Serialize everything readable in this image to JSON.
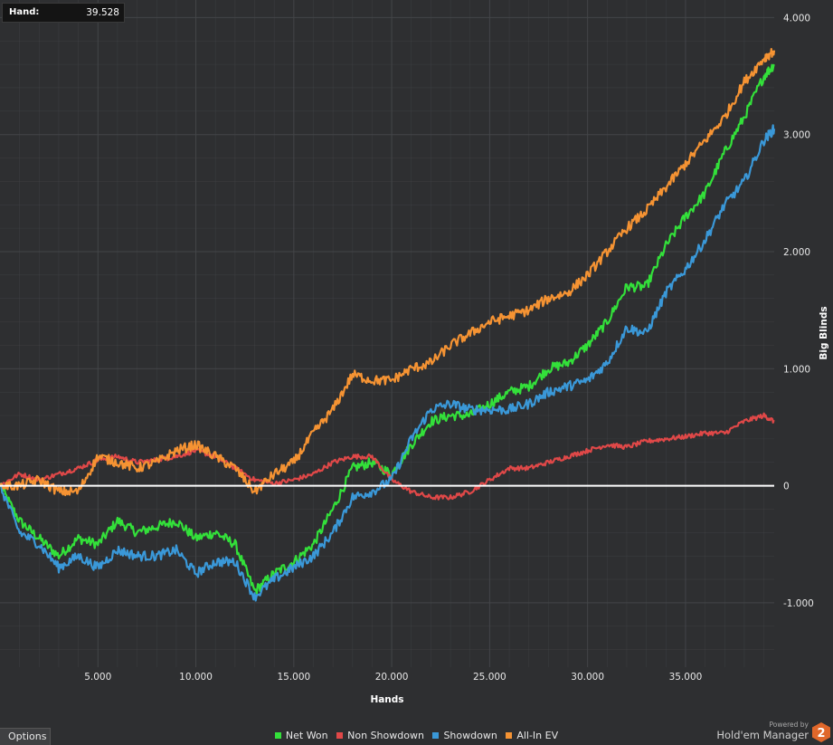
{
  "hand_readout": {
    "label": "Hand:",
    "value": "39.528"
  },
  "options_label": "Options",
  "branding": {
    "powered_by": "Powered by",
    "name": "Hold'em Manager",
    "badge": "2"
  },
  "colors": {
    "background": "#2e2f31",
    "grid": "#45474a",
    "zero_line": "#ffffff",
    "net_won": "#33e03a",
    "non_showdown": "#e04848",
    "showdown": "#3a98d8",
    "all_in_ev": "#f59333"
  },
  "chart_data": {
    "type": "line",
    "title": "",
    "xlabel": "Hands",
    "ylabel": "Big Blinds",
    "xlim": [
      0,
      39528
    ],
    "ylim": [
      -1550,
      4150
    ],
    "x_ticks": [
      5000,
      10000,
      15000,
      20000,
      25000,
      30000,
      35000
    ],
    "x_tick_labels": [
      "5.000",
      "10.000",
      "15.000",
      "20.000",
      "25.000",
      "30.000",
      "35.000"
    ],
    "y_ticks": [
      -1000,
      0,
      1000,
      2000,
      3000,
      4000
    ],
    "y_tick_labels": [
      "-1.000",
      "0",
      "1.000",
      "2.000",
      "3.000",
      "4.000"
    ],
    "grid": true,
    "legend_position": "bottom",
    "zero_line": true,
    "series": [
      {
        "name": "Net Won",
        "color": "#33e03a",
        "x": [
          0,
          1000,
          2000,
          3000,
          4000,
          5000,
          6000,
          7000,
          8000,
          9000,
          10000,
          11000,
          12000,
          13000,
          14000,
          15000,
          16000,
          17000,
          18000,
          19000,
          20000,
          21000,
          22000,
          23000,
          24000,
          25000,
          26000,
          27000,
          28000,
          29000,
          30000,
          31000,
          32000,
          33000,
          34000,
          35000,
          36000,
          37000,
          38000,
          39000,
          39528
        ],
        "values": [
          0,
          -300,
          -450,
          -600,
          -450,
          -500,
          -300,
          -400,
          -350,
          -300,
          -450,
          -400,
          -500,
          -900,
          -750,
          -650,
          -500,
          -200,
          150,
          200,
          100,
          350,
          550,
          600,
          600,
          700,
          800,
          850,
          1000,
          1050,
          1200,
          1400,
          1700,
          1700,
          2050,
          2300,
          2500,
          2850,
          3150,
          3500,
          3600
        ]
      },
      {
        "name": "Non Showdown",
        "color": "#e04848",
        "x": [
          0,
          1000,
          2000,
          3000,
          4000,
          5000,
          6000,
          7000,
          8000,
          9000,
          10000,
          11000,
          12000,
          13000,
          14000,
          15000,
          16000,
          17000,
          18000,
          19000,
          20000,
          21000,
          22000,
          23000,
          24000,
          25000,
          26000,
          27000,
          28000,
          29000,
          30000,
          31000,
          32000,
          33000,
          34000,
          35000,
          36000,
          37000,
          38000,
          39000,
          39528
        ],
        "values": [
          0,
          100,
          50,
          100,
          150,
          220,
          250,
          200,
          220,
          250,
          300,
          250,
          150,
          50,
          20,
          50,
          100,
          200,
          250,
          250,
          50,
          -50,
          -100,
          -100,
          -50,
          50,
          150,
          150,
          200,
          250,
          300,
          350,
          330,
          380,
          400,
          420,
          450,
          450,
          550,
          600,
          550
        ]
      },
      {
        "name": "Showdown",
        "color": "#3a98d8",
        "x": [
          0,
          1000,
          2000,
          3000,
          4000,
          5000,
          6000,
          7000,
          8000,
          9000,
          10000,
          11000,
          12000,
          13000,
          14000,
          15000,
          16000,
          17000,
          18000,
          19000,
          20000,
          21000,
          22000,
          23000,
          24000,
          25000,
          26000,
          27000,
          28000,
          29000,
          30000,
          31000,
          32000,
          33000,
          34000,
          35000,
          36000,
          37000,
          38000,
          39000,
          39528
        ],
        "values": [
          0,
          -400,
          -500,
          -700,
          -600,
          -700,
          -550,
          -600,
          -600,
          -550,
          -750,
          -650,
          -650,
          -950,
          -800,
          -700,
          -600,
          -400,
          -100,
          -50,
          50,
          400,
          650,
          700,
          650,
          650,
          650,
          700,
          800,
          850,
          900,
          1050,
          1350,
          1300,
          1650,
          1850,
          2100,
          2400,
          2600,
          2950,
          3050
        ]
      },
      {
        "name": "All-In EV",
        "color": "#f59333",
        "x": [
          0,
          1000,
          2000,
          3000,
          4000,
          5000,
          6000,
          7000,
          8000,
          9000,
          10000,
          11000,
          12000,
          13000,
          14000,
          15000,
          16000,
          17000,
          18000,
          19000,
          20000,
          21000,
          22000,
          23000,
          24000,
          25000,
          26000,
          27000,
          28000,
          29000,
          30000,
          31000,
          32000,
          33000,
          34000,
          35000,
          36000,
          37000,
          38000,
          39000,
          39528
        ],
        "values": [
          0,
          0,
          50,
          -50,
          -50,
          250,
          200,
          150,
          200,
          300,
          350,
          250,
          150,
          -50,
          100,
          200,
          450,
          650,
          950,
          900,
          900,
          1000,
          1050,
          1200,
          1300,
          1400,
          1450,
          1500,
          1600,
          1650,
          1800,
          2000,
          2200,
          2350,
          2550,
          2750,
          2950,
          3150,
          3450,
          3650,
          3720
        ]
      }
    ]
  }
}
